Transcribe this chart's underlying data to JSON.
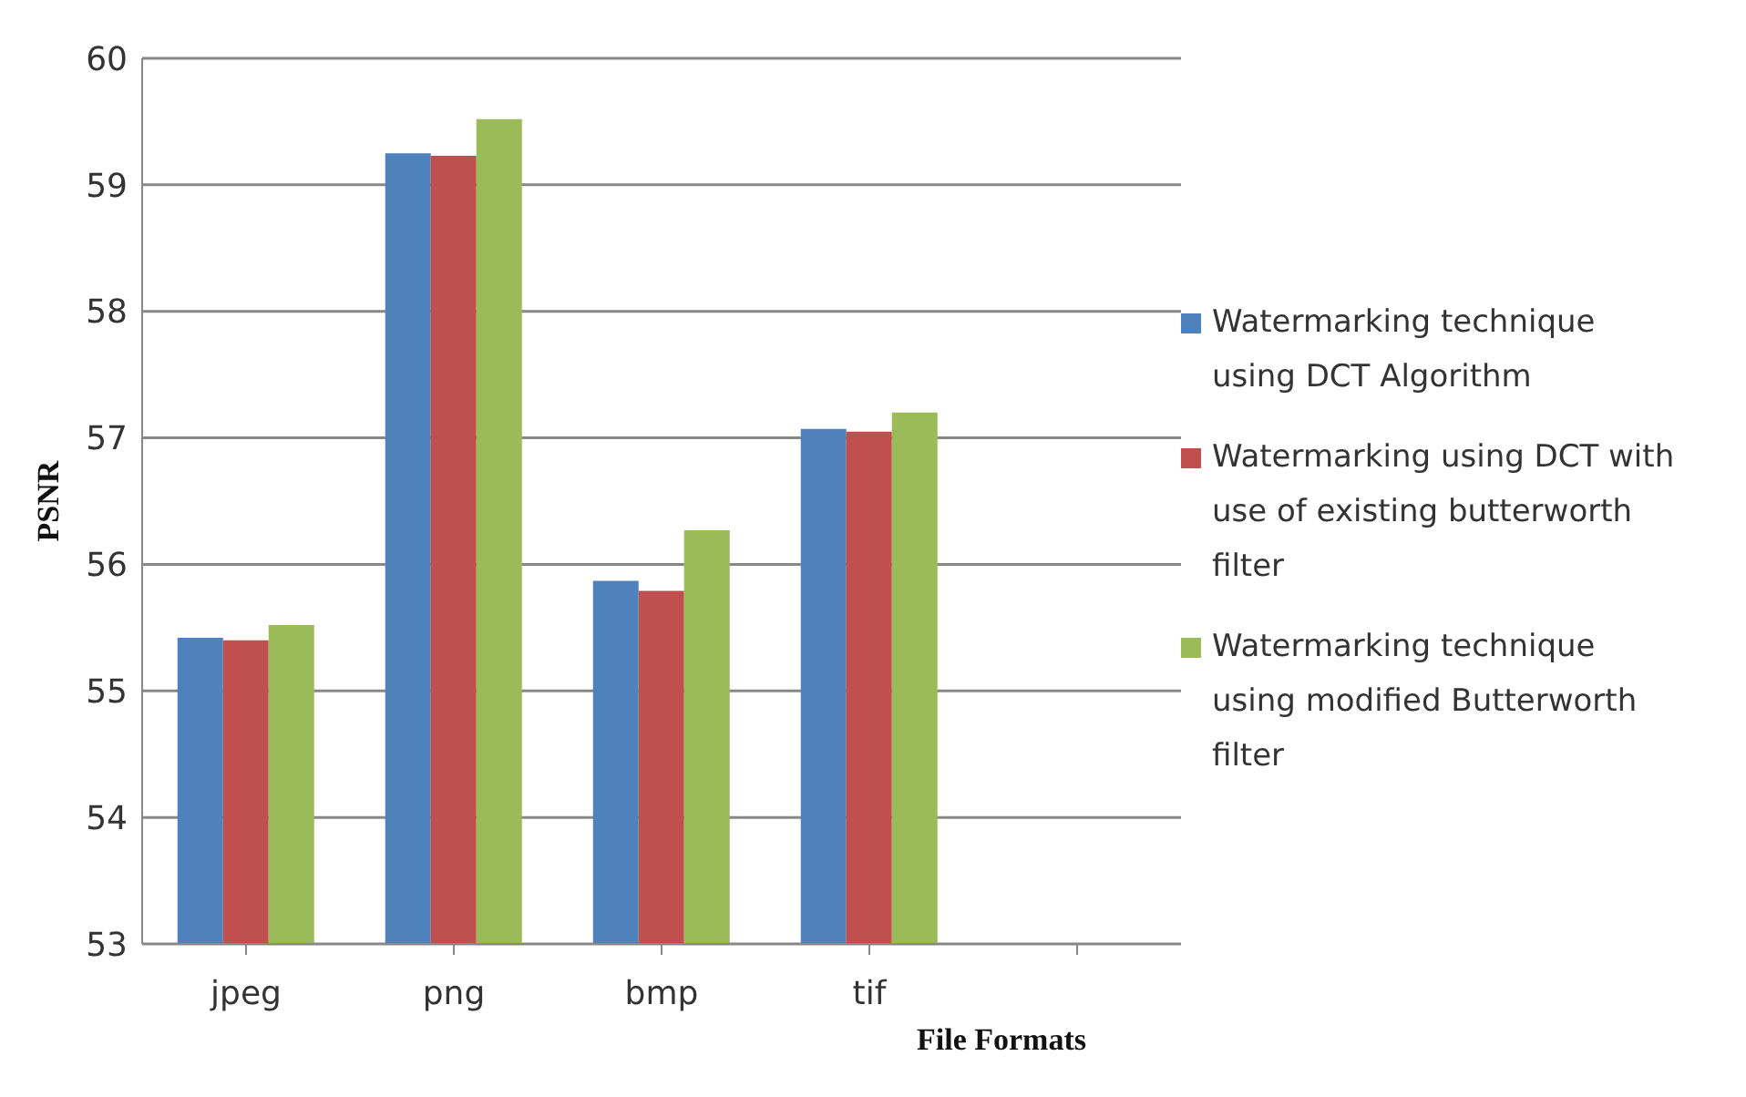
{
  "chart_data": {
    "type": "bar",
    "xlabel": "File Formats",
    "ylabel": "PSNR",
    "categories": [
      "jpeg",
      "png",
      "bmp",
      "tif",
      null
    ],
    "series": [
      {
        "name": "Watermarking technique using DCT Algorithm",
        "color": "#4f81bd",
        "values": [
          55.42,
          59.25,
          55.87,
          57.07,
          null
        ]
      },
      {
        "name": "Watermarking using DCT with use of existing butterworth filter",
        "color": "#c0504d",
        "values": [
          55.4,
          59.23,
          55.79,
          57.05,
          null
        ]
      },
      {
        "name": "Watermarking technique using modified Butterworth filter",
        "color": "#9bbb59",
        "values": [
          55.52,
          59.52,
          56.27,
          57.2,
          null
        ]
      }
    ],
    "ylim": [
      53,
      60
    ],
    "yticks": [
      53,
      54,
      55,
      56,
      57,
      58,
      59,
      60
    ],
    "grid": "y",
    "legend": "right"
  }
}
